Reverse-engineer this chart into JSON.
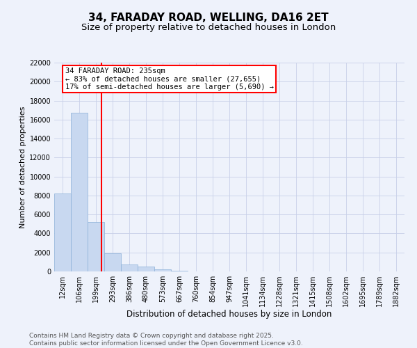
{
  "title_line1": "34, FARADAY ROAD, WELLING, DA16 2ET",
  "title_line2": "Size of property relative to detached houses in London",
  "xlabel": "Distribution of detached houses by size in London",
  "ylabel": "Number of detached properties",
  "categories": [
    "12sqm",
    "106sqm",
    "199sqm",
    "293sqm",
    "386sqm",
    "480sqm",
    "573sqm",
    "667sqm",
    "760sqm",
    "854sqm",
    "947sqm",
    "1041sqm",
    "1134sqm",
    "1228sqm",
    "1321sqm",
    "1415sqm",
    "1508sqm",
    "1602sqm",
    "1695sqm",
    "1789sqm",
    "1882sqm"
  ],
  "values": [
    8200,
    16700,
    5200,
    1900,
    700,
    500,
    200,
    100,
    0,
    0,
    0,
    0,
    0,
    0,
    0,
    0,
    0,
    0,
    0,
    0,
    0
  ],
  "bar_color": "#c8d8f0",
  "bar_edge_color": "#8ab0d8",
  "vline_x": 2.35,
  "vline_color": "red",
  "annotation_text": "34 FARADAY ROAD: 235sqm\n← 83% of detached houses are smaller (27,655)\n17% of semi-detached houses are larger (5,690) →",
  "annotation_box_color": "white",
  "annotation_box_edge_color": "red",
  "ylim": [
    0,
    22000
  ],
  "yticks": [
    0,
    2000,
    4000,
    6000,
    8000,
    10000,
    12000,
    14000,
    16000,
    18000,
    20000,
    22000
  ],
  "background_color": "#eef2fb",
  "grid_color": "#c8d0e8",
  "footer_text": "Contains HM Land Registry data © Crown copyright and database right 2025.\nContains public sector information licensed under the Open Government Licence v3.0.",
  "title_fontsize": 11,
  "subtitle_fontsize": 9.5,
  "xlabel_fontsize": 8.5,
  "ylabel_fontsize": 8,
  "tick_fontsize": 7,
  "annot_fontsize": 7.5,
  "footer_fontsize": 6.5
}
